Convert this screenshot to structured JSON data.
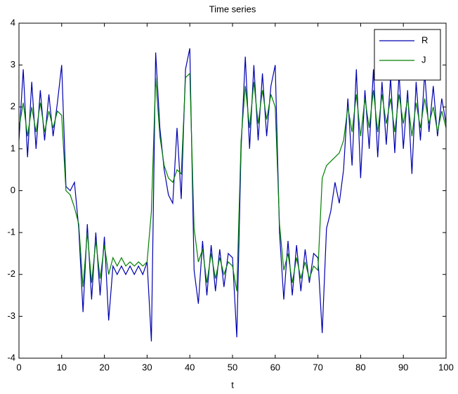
{
  "chart_data": {
    "type": "line",
    "title": "Time series",
    "x_label": "t",
    "x": [
      0,
      1,
      2,
      3,
      4,
      5,
      6,
      7,
      8,
      9,
      10,
      11,
      12,
      13,
      14,
      15,
      16,
      17,
      18,
      19,
      20,
      21,
      22,
      23,
      24,
      25,
      26,
      27,
      28,
      29,
      30,
      31,
      32,
      33,
      34,
      35,
      36,
      37,
      38,
      39,
      40,
      41,
      42,
      43,
      44,
      45,
      46,
      47,
      48,
      49,
      50,
      51,
      52,
      53,
      54,
      55,
      56,
      57,
      58,
      59,
      60,
      61,
      62,
      63,
      64,
      65,
      66,
      67,
      68,
      69,
      70,
      71,
      72,
      73,
      74,
      75,
      76,
      77,
      78,
      79,
      80,
      81,
      82,
      83,
      84,
      85,
      86,
      87,
      88,
      89,
      90,
      91,
      92,
      93,
      94,
      95,
      96,
      97,
      98,
      99,
      100
    ],
    "series": [
      {
        "name": "R",
        "color": "#0000b0",
        "values": [
          1.2,
          2.9,
          0.8,
          2.6,
          1.0,
          2.4,
          1.2,
          2.3,
          1.3,
          2.1,
          3.0,
          0.1,
          0.0,
          0.2,
          -0.9,
          -2.9,
          -0.8,
          -2.6,
          -1.0,
          -2.5,
          -1.1,
          -3.1,
          -1.8,
          -2.0,
          -1.8,
          -2.0,
          -1.8,
          -2.0,
          -1.8,
          -2.0,
          -1.7,
          -3.6,
          3.3,
          1.5,
          0.5,
          -0.1,
          -0.3,
          1.5,
          -0.2,
          2.9,
          3.4,
          -1.9,
          -2.7,
          -1.2,
          -2.5,
          -1.3,
          -2.4,
          -1.4,
          -2.3,
          -1.5,
          -1.6,
          -3.5,
          1.0,
          3.2,
          1.0,
          3.0,
          1.2,
          2.8,
          1.3,
          2.5,
          3.0,
          -1.0,
          -2.6,
          -1.2,
          -2.5,
          -1.3,
          -2.4,
          -1.4,
          -2.2,
          -1.5,
          -1.6,
          -3.4,
          -0.9,
          -0.5,
          0.2,
          -0.3,
          0.5,
          2.2,
          0.6,
          2.9,
          0.3,
          2.4,
          1.0,
          2.9,
          0.8,
          2.6,
          1.1,
          2.7,
          0.9,
          2.8,
          1.0,
          2.4,
          0.4,
          2.6,
          1.2,
          2.8,
          1.4,
          2.5,
          1.3,
          2.2,
          1.6
        ]
      },
      {
        "name": "J",
        "color": "#008000",
        "values": [
          1.5,
          2.1,
          1.3,
          2.0,
          1.4,
          2.1,
          1.4,
          1.9,
          1.5,
          1.9,
          1.8,
          0.0,
          -0.1,
          -0.4,
          -0.8,
          -2.3,
          -1.0,
          -2.2,
          -1.2,
          -2.1,
          -1.3,
          -2.0,
          -1.6,
          -1.8,
          -1.6,
          -1.8,
          -1.7,
          -1.8,
          -1.7,
          -1.8,
          -1.7,
          -0.5,
          2.7,
          1.3,
          0.6,
          0.3,
          0.2,
          0.5,
          0.4,
          2.7,
          2.8,
          -0.9,
          -1.7,
          -1.4,
          -2.2,
          -1.5,
          -2.1,
          -1.6,
          -2.0,
          -1.7,
          -1.8,
          -2.4,
          1.2,
          2.5,
          1.5,
          2.6,
          1.6,
          2.4,
          1.7,
          2.3,
          2.0,
          -0.8,
          -1.9,
          -1.5,
          -2.2,
          -1.6,
          -2.1,
          -1.7,
          -2.1,
          -1.8,
          -1.9,
          0.3,
          0.6,
          0.7,
          0.8,
          0.9,
          1.2,
          2.0,
          1.4,
          2.3,
          1.3,
          2.2,
          1.5,
          2.4,
          1.4,
          2.3,
          1.6,
          2.2,
          1.4,
          2.3,
          1.6,
          2.2,
          1.3,
          2.1,
          1.5,
          2.2,
          1.6,
          2.0,
          1.4,
          1.9,
          1.5
        ]
      }
    ],
    "xlim": [
      0,
      100
    ],
    "xticks": [
      0,
      10,
      20,
      30,
      40,
      50,
      60,
      70,
      80,
      90,
      100
    ],
    "ylim": [
      -4,
      4
    ],
    "yticks": [
      -4,
      -3,
      -2,
      -1,
      0,
      1,
      2,
      3,
      4
    ],
    "grid": false,
    "legend": "upper right"
  }
}
